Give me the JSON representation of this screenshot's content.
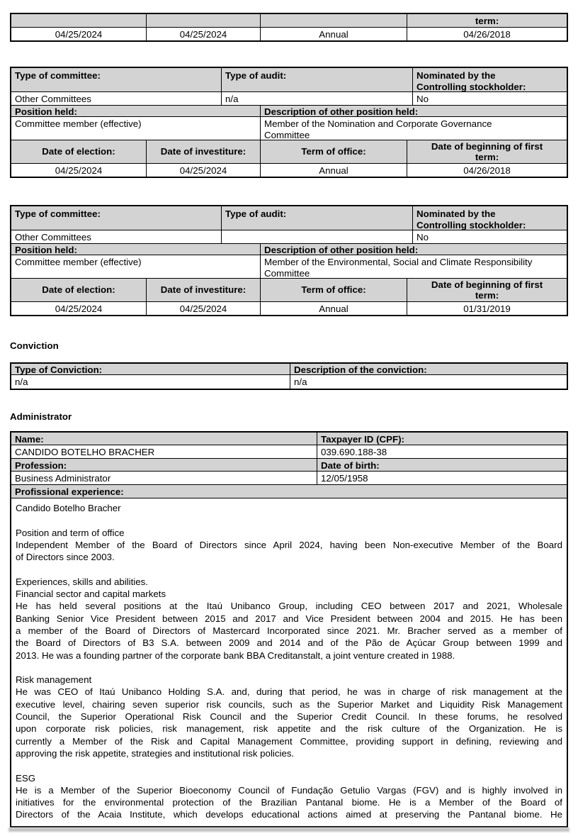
{
  "colors": {
    "header_bg": "#d3d3d3",
    "border": "#000000",
    "text": "#000000",
    "page_bg": "#ffffff",
    "next_table_bar": "#c4c4c4"
  },
  "top_table": {
    "term_label": "term:",
    "election_value": "04/25/2024",
    "investiture_value": "04/25/2024",
    "term_value": "Annual",
    "first_term_value": "04/26/2018"
  },
  "committee_labels": {
    "type": "Type of committee:",
    "audit": "Type of audit:",
    "nominated": "Nominated by the Controlling stockholder:",
    "position": "Position held:",
    "description": "Description of other position held:",
    "election": "Date of election:",
    "investiture": "Date of investiture:",
    "term": "Term of office:",
    "first_term": "Date of beginning of first term:"
  },
  "committee_tables": [
    {
      "type_value": "Other Committees",
      "audit_value": "n/a",
      "nominated_value": "No",
      "position_value": "Committee member (effective)",
      "description_value": "Member of the Nomination and Corporate Governance Committee",
      "election_value": "04/25/2024",
      "investiture_value": "04/25/2024",
      "term_value": "Annual",
      "first_term_value": "04/26/2018"
    },
    {
      "type_value": "Other Committees",
      "audit_value": "",
      "nominated_value": "No",
      "position_value": "Committee member (effective)",
      "description_value": "Member of the Environmental, Social and Climate Responsibility Committee",
      "election_value": "04/25/2024",
      "investiture_value": "04/25/2024",
      "term_value": "Annual",
      "first_term_value": "01/31/2019"
    }
  ],
  "conviction": {
    "heading": "Conviction",
    "type_label": "Type of Conviction:",
    "description_label": "Description of the conviction:",
    "type_value": "n/a",
    "description_value": "n/a"
  },
  "administrator": {
    "heading": "Administrator",
    "name_label": "Name:",
    "name_value": "CANDIDO BOTELHO BRACHER",
    "cpf_label": "Taxpayer ID (CPF):",
    "cpf_value": "039.690.188-38",
    "profession_label": "Profession:",
    "profession_value": "Business Administrator",
    "birth_label": "Date of birth:",
    "birth_value": "12/05/1958",
    "experience_label": "Profissional experience:",
    "experience_lines": [
      {
        "t": "Candido Botelho Bracher",
        "j": false
      },
      {
        "t": "",
        "j": false
      },
      {
        "t": "Position and term of office",
        "j": false
      },
      {
        "t": "Independent Member of the Board of Directors since April 2024, having been Non-executive Member of the Board",
        "j": true
      },
      {
        "t": "of Directors since 2003.",
        "j": false
      },
      {
        "t": "",
        "j": false
      },
      {
        "t": "Experiences, skills and abilities.",
        "j": false
      },
      {
        "t": "Financial sector and capital markets",
        "j": false
      },
      {
        "t": "He has held several positions at the Itaú Unibanco Group, including CEO between 2017 and 2021, Wholesale",
        "j": true
      },
      {
        "t": "Banking Senior Vice President between 2015 and 2017 and Vice President between 2004 and 2015. He has been",
        "j": true
      },
      {
        "t": "a member of the Board of Directors of Mastercard Incorporated since 2021. Mr. Bracher served as a member of",
        "j": true
      },
      {
        "t": "the Board of Directors of B3 S.A. between 2009 and 2014 and of the Pão de Açúcar Group between 1999 and",
        "j": true
      },
      {
        "t": "2013. He was a founding partner of the corporate bank BBA Creditanstalt, a joint venture created in 1988.",
        "j": false
      },
      {
        "t": "",
        "j": false
      },
      {
        "t": "Risk management",
        "j": false
      },
      {
        "t": "He was CEO of Itaú Unibanco Holding S.A. and, during that period, he was in charge of risk management at the",
        "j": true
      },
      {
        "t": "executive level, chairing seven superior risk councils, such as the Superior Market and Liquidity Risk Management",
        "j": true
      },
      {
        "t": "Council, the Superior Operational Risk Council and the Superior Credit Council.  In these forums, he resolved",
        "j": true
      },
      {
        "t": "upon corporate risk policies, risk management, risk appetite and the risk culture of the Organization. He is",
        "j": true
      },
      {
        "t": "currently a Member of the Risk and Capital Management Committee, providing support in defining, reviewing and",
        "j": true
      },
      {
        "t": "approving the risk appetite, strategies and institutional risk policies.",
        "j": false
      },
      {
        "t": "",
        "j": false
      },
      {
        "t": "ESG",
        "j": false
      },
      {
        "t": "He is a Member of the Superior Bioeconomy Council of Fundação Getulio Vargas (FGV) and is highly involved in",
        "j": true
      },
      {
        "t": "initiatives for the environmental protection of the Brazilian Pantanal biome. He is a Member of the Board of",
        "j": true
      },
      {
        "t": "Directors of the Acaia Institute, which develops educational actions aimed at preserving the Pantanal biome.  He",
        "j": true
      }
    ]
  }
}
